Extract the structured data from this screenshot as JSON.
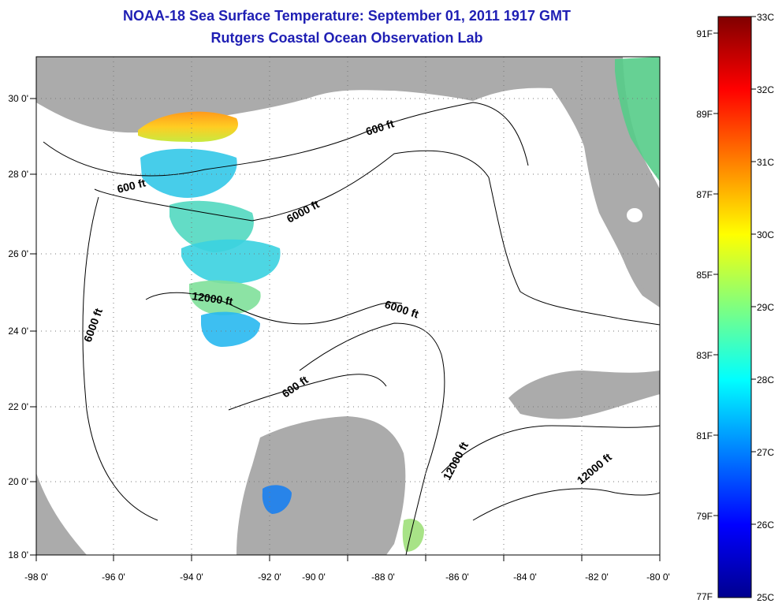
{
  "header": {
    "title": "NOAA-18 Sea Surface Temperature:  September 01, 2011 1917 GMT",
    "subtitle": "Rutgers Coastal Ocean Observation Lab"
  },
  "map": {
    "lon_ticks": [
      "-98 0'",
      "-96 0'",
      "-94 0'",
      "-92 0'",
      "-90 0'",
      "-88 0'",
      "-86 0'",
      "-84 0'",
      "-82 0'",
      "-80 0'"
    ],
    "lat_ticks": [
      "30 0'",
      "28 0'",
      "26 0'",
      "24 0'",
      "22 0'",
      "20 0'",
      "18 0'"
    ],
    "contour_labels": [
      "600 ft",
      "600 ft",
      "6000 ft",
      "6000 ft",
      "12000 ft",
      "6000 ft",
      "600 ft",
      "12000 ft",
      "12000 ft"
    ],
    "land_color": "#ababab",
    "ocean_color": "#ffffff"
  },
  "colorbar": {
    "celsius_labels": [
      "33C",
      "32C",
      "31C",
      "30C",
      "29C",
      "28C",
      "27C",
      "26C",
      "25C"
    ],
    "fahrenheit_labels": [
      "91F",
      "89F",
      "87F",
      "85F",
      "83F",
      "81F",
      "79F",
      "77F"
    ]
  }
}
